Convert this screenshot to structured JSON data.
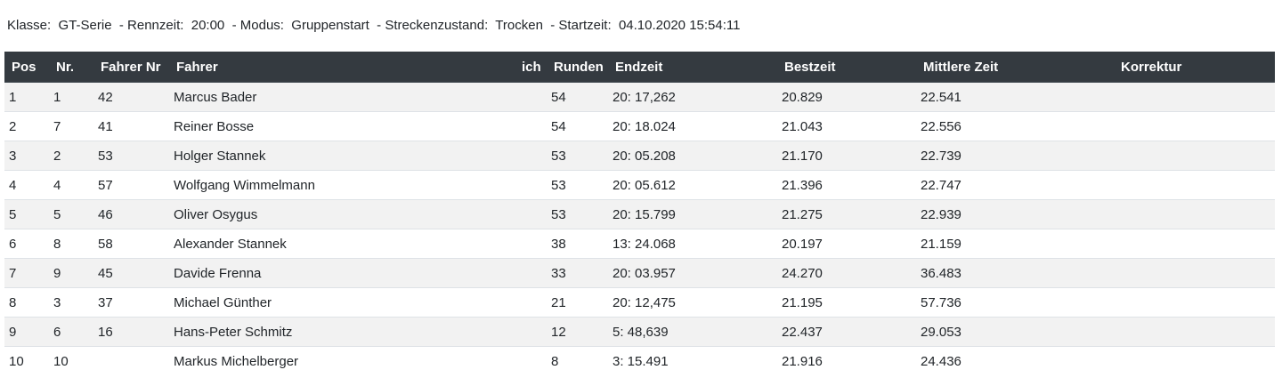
{
  "info": {
    "text": "Klasse:  GT-Serie  - Rennzeit:  20:00  - Modus:  Gruppenstart  - Streckenzustand:  Trocken  - Startzeit:  04.10.2020 15:54:11"
  },
  "table": {
    "headers": [
      "Pos",
      "Nr.",
      "Fahrer Nr",
      "Fahrer",
      "ich",
      "Runden",
      "Endzeit",
      "Bestzeit",
      "Mittlere Zeit",
      "Korrektur"
    ],
    "rows": [
      [
        "1",
        "1",
        "42",
        "Marcus Bader",
        "",
        "54",
        "20: 17,262",
        "20.829",
        "22.541",
        ""
      ],
      [
        "2",
        "7",
        "41",
        "Reiner Bosse",
        "",
        "54",
        "20: 18.024",
        "21.043",
        "22.556",
        ""
      ],
      [
        "3",
        "2",
        "53",
        "Holger Stannek",
        "",
        "53",
        "20: 05.208",
        "21.170",
        "22.739",
        ""
      ],
      [
        "4",
        "4",
        "57",
        "Wolfgang Wimmelmann",
        "",
        "53",
        "20: 05.612",
        "21.396",
        "22.747",
        ""
      ],
      [
        "5",
        "5",
        "46",
        "Oliver Osygus",
        "",
        "53",
        "20: 15.799",
        "21.275",
        "22.939",
        ""
      ],
      [
        "6",
        "8",
        "58",
        "Alexander Stannek",
        "",
        "38",
        "13: 24.068",
        "20.197",
        "21.159",
        ""
      ],
      [
        "7",
        "9",
        "45",
        "Davide Frenna",
        "",
        "33",
        "20: 03.957",
        "24.270",
        "36.483",
        ""
      ],
      [
        "8",
        "3",
        "37",
        "Michael Günther",
        "",
        "21",
        "20: 12,475",
        "21.195",
        "57.736",
        ""
      ],
      [
        "9",
        "6",
        "16",
        "Hans-Peter Schmitz",
        "",
        "12",
        "5: 48,639",
        "22.437",
        "29.053",
        ""
      ],
      [
        "10",
        "10",
        "",
        "Markus Michelberger",
        "",
        "8",
        "3: 15.491",
        "21.916",
        "24.436",
        ""
      ]
    ]
  }
}
